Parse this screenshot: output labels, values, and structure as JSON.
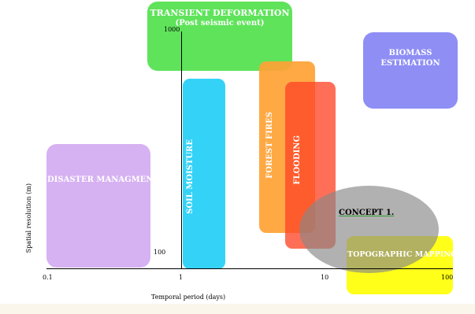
{
  "axes": {
    "x_title": "Temporal period (days)",
    "y_title": "Spatial resolution (m)",
    "x_ticks": [
      "0.1",
      "1",
      "10",
      "100"
    ],
    "y_ticks": [
      "1000",
      "100"
    ]
  },
  "regions": {
    "transient": {
      "line1": "TRANSIENT DEFORMATION",
      "line2": "(Post seismic event)",
      "color": "#5fe35b"
    },
    "biomass": {
      "line1": "BIOMASS",
      "line2": "ESTIMATION",
      "color": "#8e8ef5"
    },
    "soil": {
      "label": "SOIL MOISTURE",
      "color": "#35d2f7"
    },
    "forest": {
      "label": "FOREST FIRES",
      "color": "#ffa235"
    },
    "flooding": {
      "label": "FLOODING",
      "color": "#ff4b2b"
    },
    "disaster": {
      "label": "DISASTER MANAGMENT",
      "color": "#d6b2f2"
    },
    "topo": {
      "label": "TOPOGRAPHIC MAPPING",
      "color": "#ffff1a"
    },
    "concept": {
      "label": "CONCEPT 1.",
      "color": "#909090"
    }
  }
}
